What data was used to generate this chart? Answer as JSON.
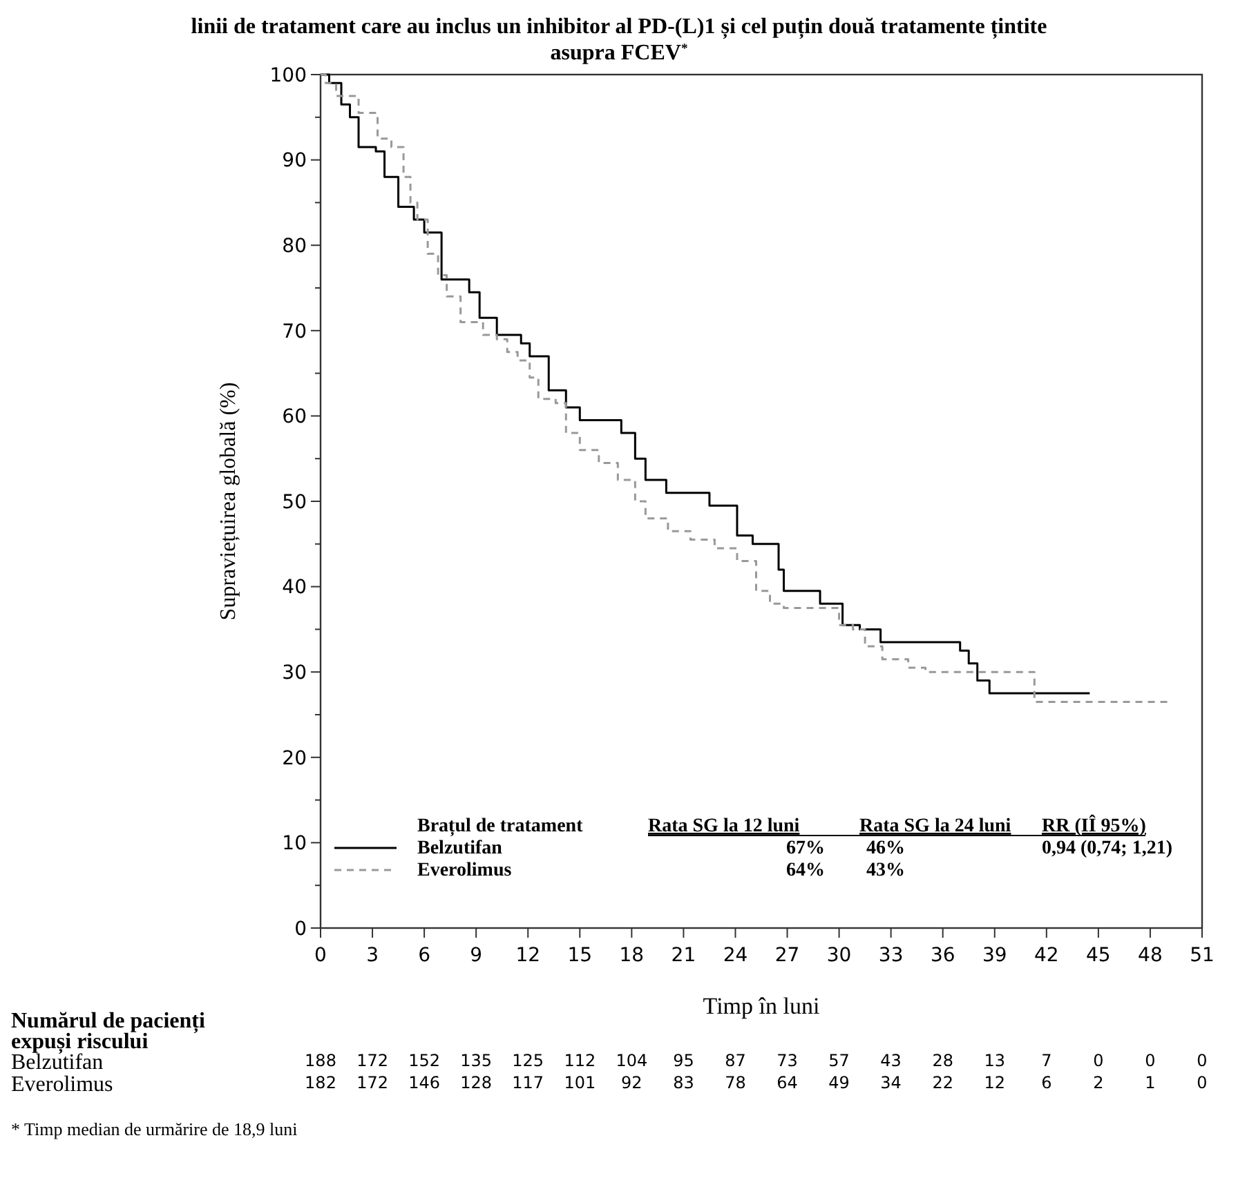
{
  "chart_data": {
    "type": "step",
    "title": "linii de tratament care au inclus un inhibitor al PD-(L)1 și cel puțin două tratamente țintite asupra FCEV$^{*}$",
    "xlabel": "Timp în luni",
    "ylabel": "Supraviețuirea globală (%)",
    "legend_title": "Brațul de tratament",
    "legend": "bottom left",
    "grid": false,
    "xlim": [
      0,
      51
    ],
    "xticks": [
      0,
      3,
      6,
      9,
      12,
      15,
      18,
      21,
      24,
      27,
      30,
      33,
      36,
      39,
      42,
      45,
      48,
      51
    ],
    "ylim": [
      0,
      100
    ],
    "yticks": [
      0,
      {
        "value": 5,
        "label": null
      },
      10,
      {
        "value": 15,
        "label": null
      },
      20,
      {
        "value": 25,
        "label": null
      },
      30,
      {
        "value": 35,
        "label": null
      },
      40,
      {
        "value": 45,
        "label": null
      },
      50,
      {
        "value": 55,
        "label": null
      },
      60,
      {
        "value": 65,
        "label": null
      },
      70,
      {
        "value": 75,
        "label": null
      },
      80,
      {
        "value": 85,
        "label": null
      },
      90,
      {
        "value": 95,
        "label": null
      },
      100
    ],
    "series": [
      {
        "name": "Belzutifan",
        "color": "#000000",
        "line_style": "solid",
        "x": [
          0,
          0.5,
          1.2,
          1.7,
          2.2,
          3.2,
          3.7,
          4.5,
          5.4,
          6,
          7,
          8.6,
          9.2,
          10.2,
          11.6,
          12.1,
          13.2,
          14.2,
          15,
          17.4,
          18.2,
          18.8,
          20,
          22.5,
          24.1,
          25,
          26.5,
          26.8,
          28.9,
          30.2,
          31.2,
          32.4,
          37,
          37.5,
          38,
          38.7,
          44.5
        ],
        "values": [
          100,
          99,
          96.5,
          95,
          91.5,
          91,
          88,
          84.5,
          83,
          81.5,
          76,
          74.5,
          71.5,
          69.5,
          68.5,
          67,
          63,
          61,
          59.5,
          58,
          55,
          52.5,
          51,
          49.5,
          46,
          45,
          42,
          39.5,
          38,
          35.5,
          35,
          33.5,
          32.5,
          31,
          29,
          27.5,
          27.5
        ]
      },
      {
        "name": "Everolimus",
        "color": "#999999",
        "line_style": "dashed",
        "x": [
          0,
          0.3,
          0.9,
          2.2,
          3.3,
          4.1,
          4.8,
          5.2,
          5.6,
          6.2,
          6.8,
          7.3,
          8.1,
          9.4,
          10.2,
          10.8,
          11.4,
          12.1,
          12.6,
          13.6,
          14.2,
          15,
          16.1,
          17.2,
          18.2,
          18.8,
          20.1,
          21.4,
          22.8,
          24.1,
          25.2,
          26,
          26.8,
          29,
          30,
          30.8,
          31.5,
          32.5,
          34,
          35,
          41.3,
          49
        ],
        "values": [
          100,
          99,
          97.5,
          95.5,
          92.5,
          91.5,
          88,
          85,
          83,
          79,
          76.5,
          74,
          71,
          69.5,
          69,
          67.5,
          66.5,
          64.5,
          62,
          61.5,
          58,
          56,
          54.5,
          52.5,
          50,
          48,
          46.5,
          45.5,
          44.5,
          43,
          39.5,
          38,
          37.5,
          37.5,
          35.5,
          35,
          33,
          31.5,
          30.5,
          30,
          26.5,
          26.5
        ]
      }
    ],
    "annotations": [
      "Rata SG la 12 luni",
      "Rata SG la 24 luni",
      "RR (IÎ 95%)",
      "67%",
      "46%",
      "0,94 (0,74; 1,21)",
      "64%",
      "43%",
      "Numărul de pacienți expuși riscului",
      "188 172 152 135 125 112 104 95 87 73 57 43 28 13 7 0 0 0",
      "182 172 146 128 117 101 92 83 78 64 49 34 22 12 6 2 1 0",
      "* Timp median de urmărire de 18,9  luni"
    ]
  }
}
